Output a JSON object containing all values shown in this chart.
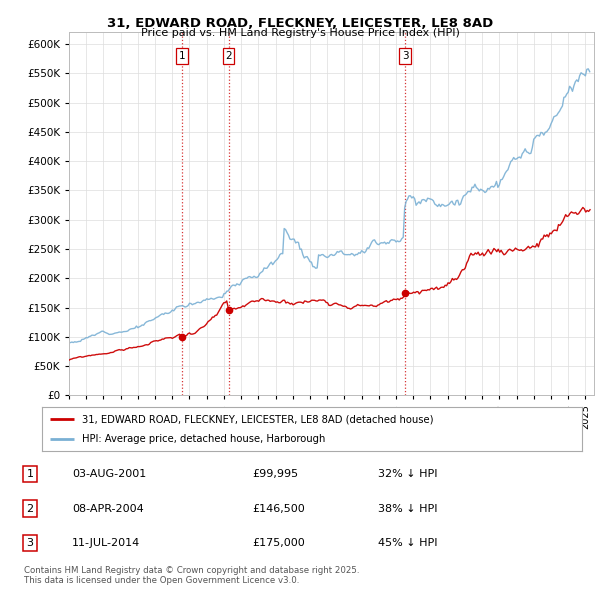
{
  "title": "31, EDWARD ROAD, FLECKNEY, LEICESTER, LE8 8AD",
  "subtitle": "Price paid vs. HM Land Registry's House Price Index (HPI)",
  "ylim": [
    0,
    620000
  ],
  "yticks": [
    0,
    50000,
    100000,
    150000,
    200000,
    250000,
    300000,
    350000,
    400000,
    450000,
    500000,
    550000,
    600000
  ],
  "xlim_start": 1995.0,
  "xlim_end": 2025.5,
  "sale_dates": [
    2001.58,
    2004.27,
    2014.52
  ],
  "sale_prices": [
    99995,
    146500,
    175000
  ],
  "sale_labels": [
    "1",
    "2",
    "3"
  ],
  "vline_color": "#cc0000",
  "legend_line1": "31, EDWARD ROAD, FLECKNEY, LEICESTER, LE8 8AD (detached house)",
  "legend_line2": "HPI: Average price, detached house, Harborough",
  "table_data": [
    [
      "1",
      "03-AUG-2001",
      "£99,995",
      "32% ↓ HPI"
    ],
    [
      "2",
      "08-APR-2004",
      "£146,500",
      "38% ↓ HPI"
    ],
    [
      "3",
      "11-JUL-2014",
      "£175,000",
      "45% ↓ HPI"
    ]
  ],
  "footer": "Contains HM Land Registry data © Crown copyright and database right 2025.\nThis data is licensed under the Open Government Licence v3.0.",
  "red_color": "#cc0000",
  "blue_color": "#7ab0d4",
  "background_color": "#ffffff",
  "grid_color": "#dddddd"
}
